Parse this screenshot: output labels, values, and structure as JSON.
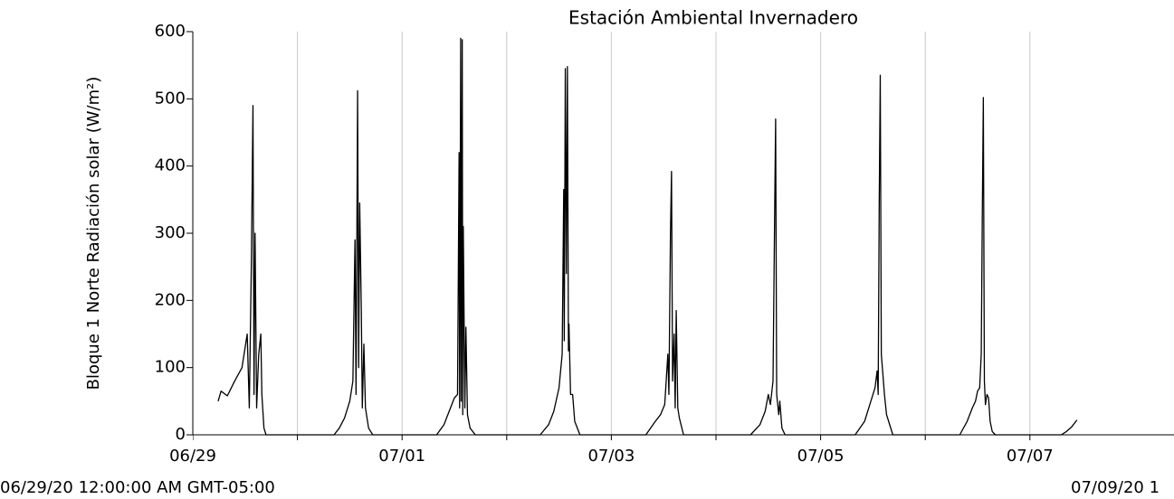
{
  "chart_data": {
    "type": "line",
    "title": "Estación Ambiental Invernadero",
    "y_label": "Bloque 1 Norte Radiación solar (W/m²)",
    "range_start_label": "06/29/20 12:00:00 AM GMT-05:00",
    "range_end_label": "07/09/20 1",
    "xlim": [
      0,
      10
    ],
    "xticks": [
      {
        "value": 0,
        "label": "06/29"
      },
      {
        "value": 1,
        "label": null
      },
      {
        "value": 2,
        "label": "07/01"
      },
      {
        "value": 3,
        "label": null
      },
      {
        "value": 4,
        "label": "07/03"
      },
      {
        "value": 5,
        "label": null
      },
      {
        "value": 6,
        "label": "07/05"
      },
      {
        "value": 7,
        "label": null
      },
      {
        "value": 8,
        "label": "07/07"
      }
    ],
    "ylim": [
      0,
      600
    ],
    "yticks": [
      0,
      100,
      200,
      300,
      400,
      500,
      600
    ],
    "grid": true,
    "color": "#000000",
    "x": [
      0.242,
      0.27,
      0.33,
      0.4,
      0.47,
      0.52,
      0.54,
      0.56,
      0.575,
      0.585,
      0.595,
      0.61,
      0.63,
      0.65,
      0.66,
      0.68,
      0.7,
      1.35,
      1.4,
      1.45,
      1.5,
      1.53,
      1.55,
      1.56,
      1.575,
      1.585,
      1.595,
      1.61,
      1.62,
      1.635,
      1.65,
      1.68,
      1.72,
      2.33,
      2.4,
      2.45,
      2.5,
      2.53,
      2.545,
      2.55,
      2.56,
      2.565,
      2.575,
      2.58,
      2.585,
      2.6,
      2.61,
      2.625,
      2.65,
      2.7,
      3.32,
      3.4,
      3.45,
      3.5,
      3.53,
      3.545,
      3.55,
      3.56,
      3.57,
      3.58,
      3.59,
      3.595,
      3.61,
      3.63,
      3.65,
      3.7,
      4.33,
      4.42,
      4.47,
      4.51,
      4.54,
      4.55,
      4.565,
      4.575,
      4.585,
      4.6,
      4.61,
      4.62,
      4.635,
      4.65,
      4.69,
      5.33,
      5.42,
      5.47,
      5.5,
      5.52,
      5.545,
      5.56,
      5.57,
      5.58,
      5.6,
      5.61,
      5.63,
      5.66,
      6.33,
      6.42,
      6.47,
      6.52,
      6.54,
      6.55,
      6.56,
      6.57,
      6.58,
      6.59,
      6.61,
      6.63,
      6.65,
      6.69,
      7.33,
      7.4,
      7.45,
      7.48,
      7.5,
      7.52,
      7.535,
      7.545,
      7.555,
      7.565,
      7.575,
      7.59,
      7.605,
      7.62,
      7.64,
      7.67,
      8.3,
      8.35,
      8.4,
      8.45
    ],
    "values": [
      50,
      65,
      58,
      80,
      100,
      150,
      40,
      260,
      490,
      60,
      300,
      40,
      120,
      150,
      60,
      10,
      0,
      0,
      10,
      25,
      50,
      80,
      290,
      60,
      512,
      100,
      345,
      190,
      40,
      135,
      40,
      10,
      0,
      0,
      15,
      35,
      55,
      60,
      420,
      40,
      590,
      50,
      588,
      30,
      310,
      40,
      160,
      30,
      10,
      0,
      0,
      15,
      35,
      70,
      120,
      365,
      140,
      545,
      240,
      548,
      125,
      165,
      60,
      60,
      20,
      0,
      0,
      20,
      30,
      45,
      120,
      60,
      300,
      392,
      80,
      150,
      40,
      185,
      40,
      25,
      0,
      0,
      15,
      35,
      60,
      45,
      80,
      320,
      470,
      60,
      30,
      50,
      10,
      0,
      0,
      20,
      45,
      70,
      95,
      60,
      345,
      535,
      120,
      100,
      60,
      30,
      20,
      0,
      0,
      20,
      40,
      50,
      65,
      70,
      120,
      325,
      502,
      80,
      45,
      60,
      55,
      20,
      5,
      0,
      0,
      5,
      12,
      22
    ]
  }
}
